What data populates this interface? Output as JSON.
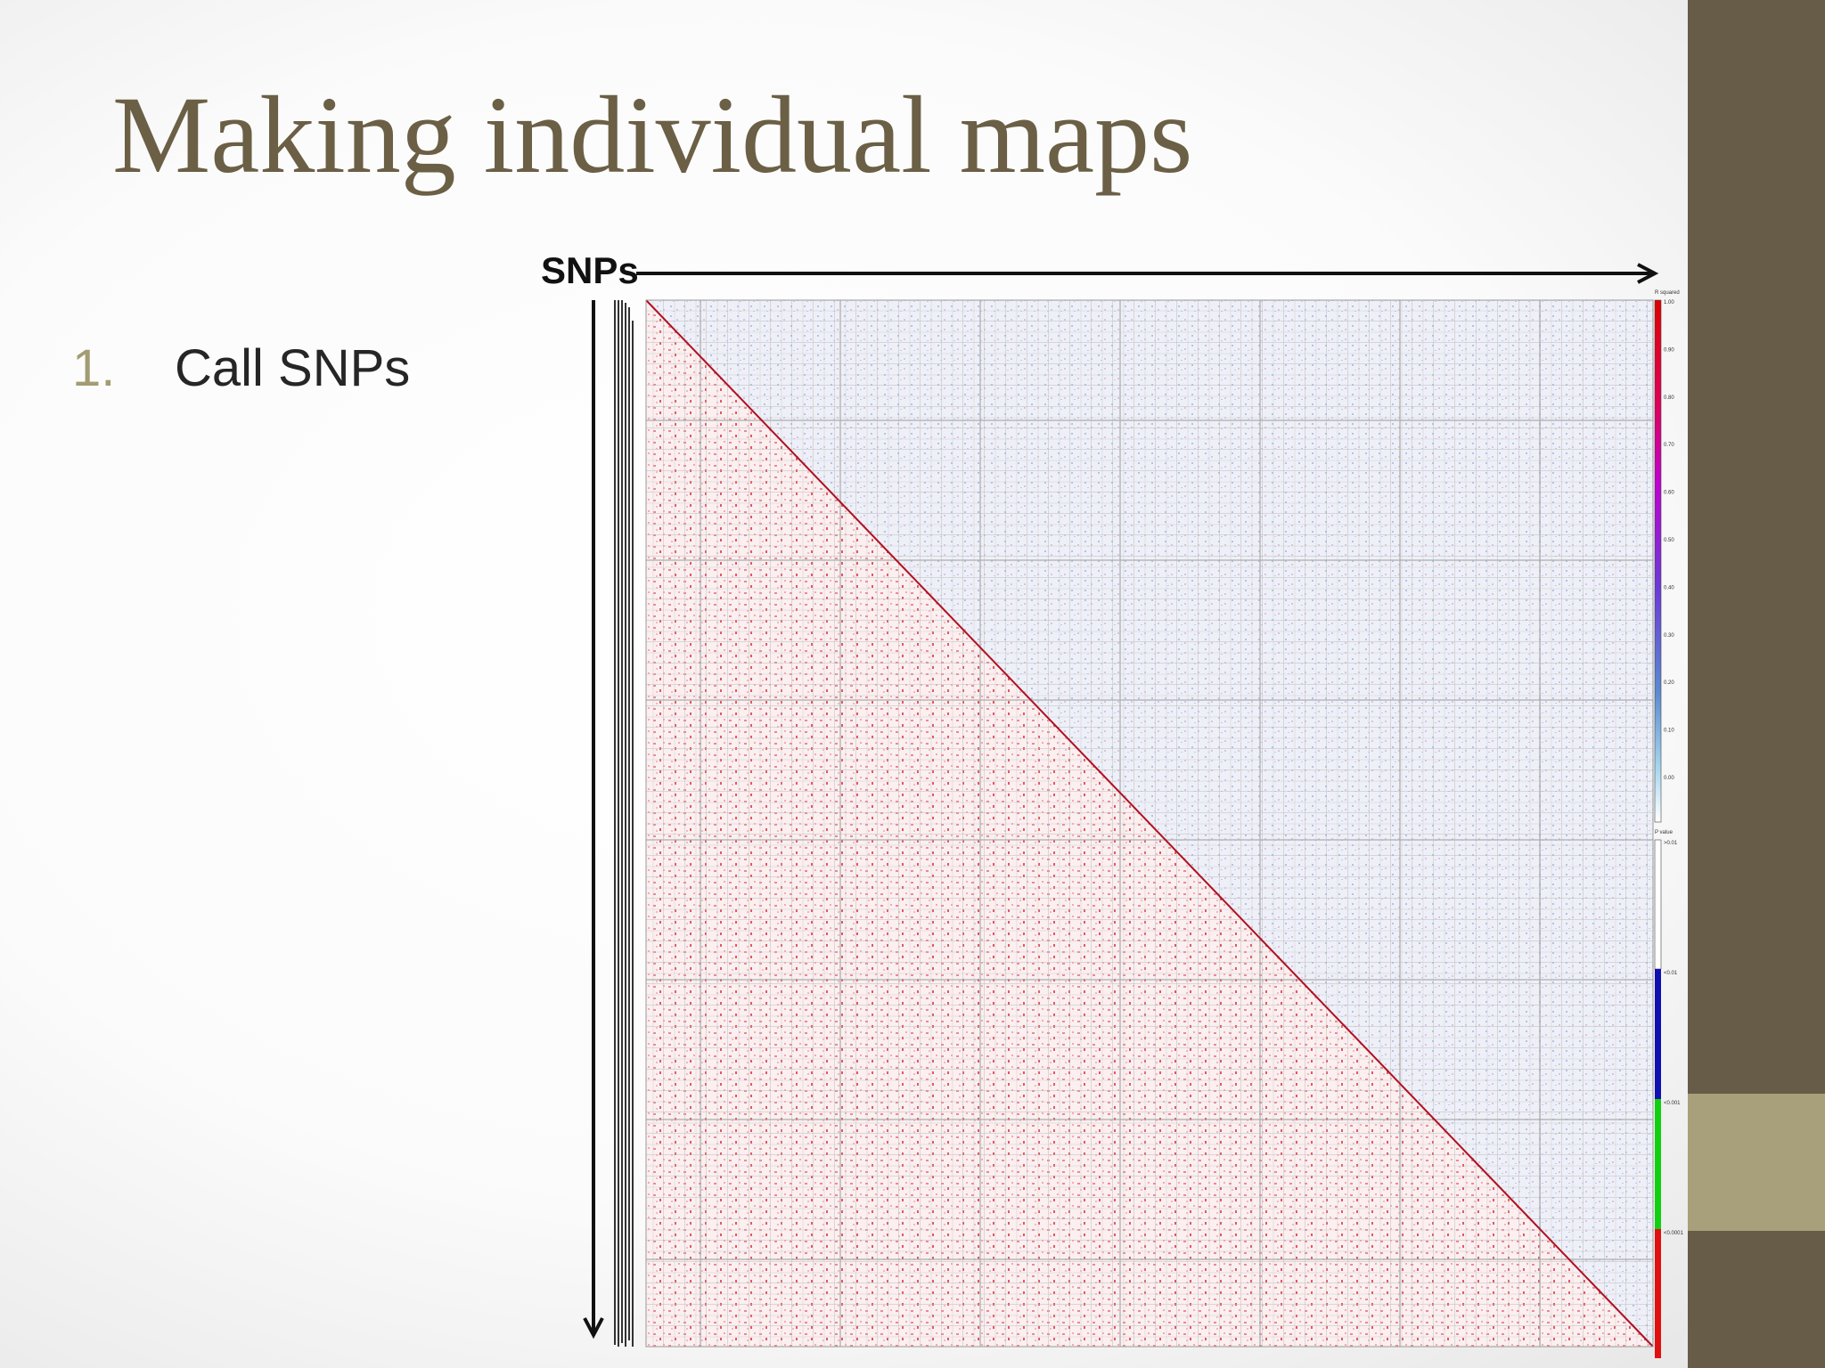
{
  "title": "Making individual maps",
  "list": [
    {
      "number": "1.",
      "text": "Call SNPs"
    }
  ],
  "figure": {
    "axis_label": "SNPs",
    "legend": {
      "r_squared": {
        "title": "R squared",
        "labels": [
          "1.00",
          "0.90",
          "0.80",
          "0.70",
          "0.60",
          "0.50",
          "0.40",
          "0.30",
          "0.20",
          "0.10",
          "0.00"
        ]
      },
      "p_value": {
        "title": "P value",
        "labels": [
          ">0.01",
          "<0.01",
          "<0.001",
          "<0.0001"
        ]
      }
    }
  }
}
